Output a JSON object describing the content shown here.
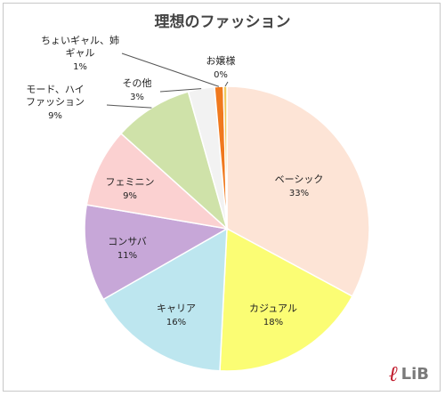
{
  "chart_data": {
    "type": "pie",
    "title": "理想のファッション",
    "slices": [
      {
        "label": "ベーシック",
        "value": 33,
        "pct_label": "33%",
        "color": "#fde4d6"
      },
      {
        "label": "カジュアル",
        "value": 18,
        "pct_label": "18%",
        "color": "#fbfd74"
      },
      {
        "label": "キャリア",
        "value": 16,
        "pct_label": "16%",
        "color": "#bde6ef"
      },
      {
        "label": "コンサバ",
        "value": 11,
        "pct_label": "11%",
        "color": "#c7a7d8"
      },
      {
        "label": "フェミニン",
        "value": 9,
        "pct_label": "9%",
        "color": "#fbd1d1"
      },
      {
        "label": "モード、ハイ\nファッション",
        "value": 9,
        "pct_label": "9%",
        "color": "#cfe2a9"
      },
      {
        "label": "その他",
        "value": 3,
        "pct_label": "3%",
        "color": "#f2f2f2"
      },
      {
        "label": "ちょいギャル、姉\nギャル",
        "value": 1,
        "pct_label": "1%",
        "color": "#f0791e"
      },
      {
        "label": "お嬢様",
        "value": 0.4,
        "pct_label": "0%",
        "color": "#f0c75a"
      }
    ]
  },
  "logo": {
    "text": "LiB",
    "mark": "ℓ"
  }
}
